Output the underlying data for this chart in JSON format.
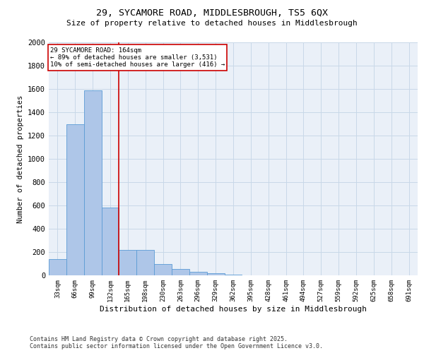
{
  "title_line1": "29, SYCAMORE ROAD, MIDDLESBROUGH, TS5 6QX",
  "title_line2": "Size of property relative to detached houses in Middlesbrough",
  "xlabel": "Distribution of detached houses by size in Middlesbrough",
  "ylabel": "Number of detached properties",
  "annotation_line1": "29 SYCAMORE ROAD: 164sqm",
  "annotation_line2": "← 89% of detached houses are smaller (3,531)",
  "annotation_line3": "10% of semi-detached houses are larger (416) →",
  "bar_categories": [
    "33sqm",
    "66sqm",
    "99sqm",
    "132sqm",
    "165sqm",
    "198sqm",
    "230sqm",
    "263sqm",
    "296sqm",
    "329sqm",
    "362sqm",
    "395sqm",
    "428sqm",
    "461sqm",
    "494sqm",
    "527sqm",
    "559sqm",
    "592sqm",
    "625sqm",
    "658sqm",
    "691sqm"
  ],
  "bar_values": [
    140,
    1300,
    1590,
    580,
    220,
    220,
    100,
    55,
    30,
    20,
    5,
    0,
    0,
    0,
    0,
    0,
    0,
    0,
    0,
    0,
    0
  ],
  "bar_color": "#aec6e8",
  "bar_edge_color": "#5b9bd5",
  "redline_x": 4,
  "redline_color": "#cc0000",
  "annotation_box_color": "#cc0000",
  "background_color": "#ffffff",
  "plot_bg_color": "#eaf0f8",
  "grid_color": "#c8d8e8",
  "ylim": [
    0,
    2000
  ],
  "yticks": [
    0,
    200,
    400,
    600,
    800,
    1000,
    1200,
    1400,
    1600,
    1800,
    2000
  ],
  "footer_line1": "Contains HM Land Registry data © Crown copyright and database right 2025.",
  "footer_line2": "Contains public sector information licensed under the Open Government Licence v3.0."
}
